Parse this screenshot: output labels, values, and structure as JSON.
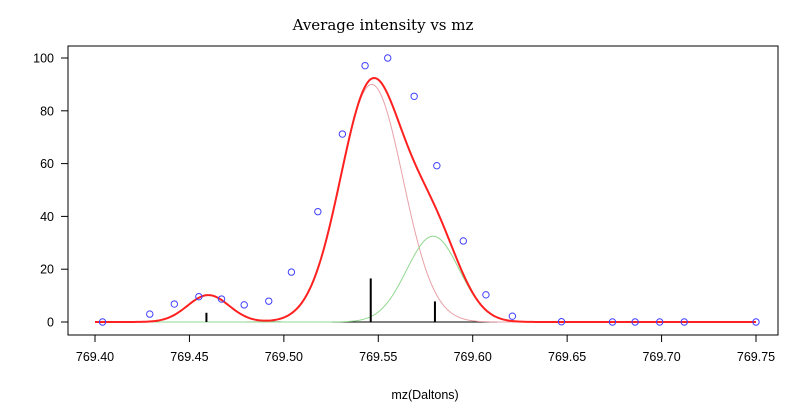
{
  "chart_data": {
    "type": "line",
    "title": "Average intensity vs mz",
    "xlabel": "mz(Daltons)",
    "ylabel": "",
    "xlim": [
      769.4,
      769.75
    ],
    "ylim": [
      0,
      100
    ],
    "x_ticks": [
      769.4,
      769.45,
      769.5,
      769.55,
      769.6,
      769.65,
      769.7,
      769.75
    ],
    "x_tick_labels": [
      "769.40",
      "769.45",
      "769.50",
      "769.55",
      "769.60",
      "769.65",
      "769.70",
      "769.75"
    ],
    "y_ticks": [
      0,
      20,
      40,
      60,
      80,
      100
    ],
    "y_tick_labels": [
      "0",
      "20",
      "40",
      "60",
      "80",
      "100"
    ],
    "grid": false,
    "colors": {
      "total_fit": "#ff2020",
      "component_1": "#000000",
      "component_2": "#e8a0a8",
      "component_3": "#90d890",
      "observed": "#4040ff",
      "sticks": "#000000"
    },
    "components": [
      {
        "center": 769.46,
        "amplitude": 10.2,
        "sigma": 0.011
      },
      {
        "center": 769.5465,
        "amplitude": 90.0,
        "sigma": 0.0165
      },
      {
        "center": 769.579,
        "amplitude": 32.5,
        "sigma": 0.014
      }
    ],
    "observed": {
      "x": [
        769.404,
        769.429,
        769.442,
        769.455,
        769.467,
        769.479,
        769.492,
        769.504,
        769.518,
        769.531,
        769.543,
        769.555,
        769.569,
        769.581,
        769.595,
        769.607,
        769.621,
        769.647,
        769.674,
        769.686,
        769.699,
        769.712,
        769.75
      ],
      "y": [
        0.0,
        3.0,
        6.8,
        9.6,
        8.7,
        6.5,
        7.9,
        18.9,
        41.8,
        71.2,
        97.1,
        100.0,
        85.5,
        59.2,
        30.7,
        10.3,
        2.2,
        0.1,
        0.0,
        0.0,
        0.0,
        0.0,
        0.0
      ]
    },
    "sticks": {
      "x": [
        769.459,
        769.546,
        769.58
      ],
      "y": [
        3.5,
        16.5,
        7.8
      ]
    }
  }
}
